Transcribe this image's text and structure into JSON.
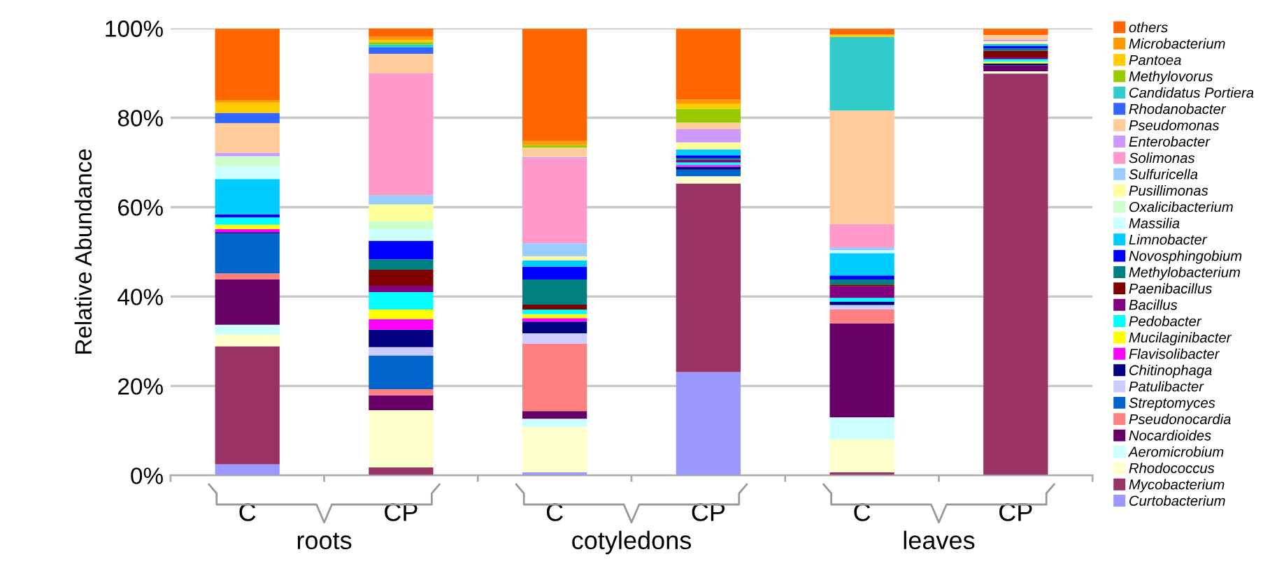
{
  "chart_data": {
    "type": "bar",
    "stacked": true,
    "ylabel": "Relative Abundance",
    "categories": [
      "C",
      "CP",
      "C",
      "CP",
      "C",
      "CP"
    ],
    "annotations": [
      "roots",
      "cotyledons",
      "leaves"
    ],
    "ylim": [
      0,
      100
    ],
    "yticks": [
      {
        "value": 0,
        "label": "0%"
      },
      {
        "value": 20,
        "label": "20%"
      },
      {
        "value": 40,
        "label": "40%"
      },
      {
        "value": 60,
        "label": "60%"
      },
      {
        "value": 80,
        "label": "80%"
      },
      {
        "value": 100,
        "label": "100%"
      }
    ],
    "grid": "y",
    "legend": "right",
    "series": [
      {
        "name": "Curtobacterium",
        "color": "#9999ff",
        "values": [
          2.5,
          0,
          0.7,
          23.1,
          0,
          0
        ]
      },
      {
        "name": "Mycobacterium",
        "color": "#993366",
        "values": [
          26.4,
          1.8,
          0,
          42.2,
          0.7,
          89.9
        ]
      },
      {
        "name": "Rhodococcus",
        "color": "#ffffcc",
        "values": [
          2.6,
          12.8,
          10.2,
          1.6,
          7.4,
          0.5
        ]
      },
      {
        "name": "Aeromicrobium",
        "color": "#ccffff",
        "values": [
          2.2,
          0,
          1.8,
          0,
          4.9,
          0
        ]
      },
      {
        "name": "Nocardioides",
        "color": "#660066",
        "values": [
          10.1,
          3.3,
          1.7,
          0,
          21.0,
          1.3
        ]
      },
      {
        "name": "Pseudonocardia",
        "color": "#ff8080",
        "values": [
          1.4,
          1.4,
          15.1,
          0,
          3.1,
          0
        ]
      },
      {
        "name": "Streptomyces",
        "color": "#0066cc",
        "values": [
          8.9,
          7.5,
          0,
          1.5,
          0,
          0
        ]
      },
      {
        "name": "Patulibacter",
        "color": "#ccccff",
        "values": [
          0,
          1.9,
          2.3,
          0,
          1.0,
          0
        ]
      },
      {
        "name": "Chitinophaga",
        "color": "#000080",
        "values": [
          0.3,
          3.9,
          2.6,
          0.6,
          0.8,
          0.4
        ]
      },
      {
        "name": "Flavisolibacter",
        "color": "#ff00ff",
        "values": [
          0.7,
          2.3,
          0.8,
          0.4,
          0,
          0
        ]
      },
      {
        "name": "Mucilaginibacter",
        "color": "#ffff00",
        "values": [
          1.0,
          2.2,
          0.9,
          0,
          0,
          0.4
        ]
      },
      {
        "name": "Pedobacter",
        "color": "#00ffff",
        "values": [
          1.6,
          3.9,
          1.0,
          0.6,
          0.8,
          0.6
        ]
      },
      {
        "name": "Bacillus",
        "color": "#800080",
        "values": [
          0,
          1.4,
          0,
          0.6,
          2.6,
          0.4
        ]
      },
      {
        "name": "Paenibacillus",
        "color": "#800000",
        "values": [
          0,
          3.6,
          1.1,
          0,
          0.4,
          1.5
        ]
      },
      {
        "name": "Methylobacterium",
        "color": "#008080",
        "values": [
          0,
          2.3,
          5.6,
          0.4,
          1.1,
          0.5
        ]
      },
      {
        "name": "Novosphingobium",
        "color": "#0000ff",
        "values": [
          0.7,
          4.2,
          2.9,
          0.6,
          0.9,
          0.6
        ]
      },
      {
        "name": "Limnobacter",
        "color": "#00ccff",
        "values": [
          7.9,
          0,
          1.4,
          1.3,
          5.0,
          0.4
        ]
      },
      {
        "name": "Massilia",
        "color": "#ccffff",
        "values": [
          2.8,
          2.6,
          0,
          0,
          0.7,
          0
        ]
      },
      {
        "name": "Oxalicibacterium",
        "color": "#ccffcc",
        "values": [
          2.3,
          1.8,
          0,
          0,
          0,
          0
        ]
      },
      {
        "name": "Pusillimonas",
        "color": "#ffff99",
        "values": [
          0,
          3.7,
          0.9,
          1.6,
          0,
          0.6
        ]
      },
      {
        "name": "Sulfuricella",
        "color": "#99ccff",
        "values": [
          0,
          2.1,
          2.9,
          0,
          0.6,
          0
        ]
      },
      {
        "name": "Solimonas",
        "color": "#ff99cc",
        "values": [
          0,
          27.3,
          19.0,
          0,
          5.2,
          0
        ]
      },
      {
        "name": "Enterobacter",
        "color": "#cc99ff",
        "values": [
          0.8,
          0,
          0.3,
          2.9,
          0,
          0.4
        ]
      },
      {
        "name": "Pseudomonas",
        "color": "#ffcc99",
        "values": [
          6.6,
          4.3,
          2.1,
          1.5,
          25.4,
          1.0
        ]
      },
      {
        "name": "Rhodanobacter",
        "color": "#3366ff",
        "values": [
          2.3,
          1.4,
          0,
          0,
          0,
          0
        ]
      },
      {
        "name": "Candidatus Portiera",
        "color": "#33cccc",
        "values": [
          0,
          0.7,
          0,
          0,
          16.5,
          0
        ]
      },
      {
        "name": "Methylovorus",
        "color": "#99cc00",
        "values": [
          0,
          0.5,
          0.6,
          3.1,
          0,
          0
        ]
      },
      {
        "name": "Pantoea",
        "color": "#ffcc00",
        "values": [
          2.3,
          0.5,
          0,
          1.1,
          0.5,
          0
        ]
      },
      {
        "name": "Microbacterium",
        "color": "#ff9900",
        "values": [
          0.6,
          0.7,
          0.9,
          1.0,
          0,
          0
        ]
      },
      {
        "name": "others",
        "color": "#ff6600",
        "values": [
          15.9,
          1.9,
          25.1,
          15.8,
          1.3,
          1.4
        ]
      }
    ]
  }
}
